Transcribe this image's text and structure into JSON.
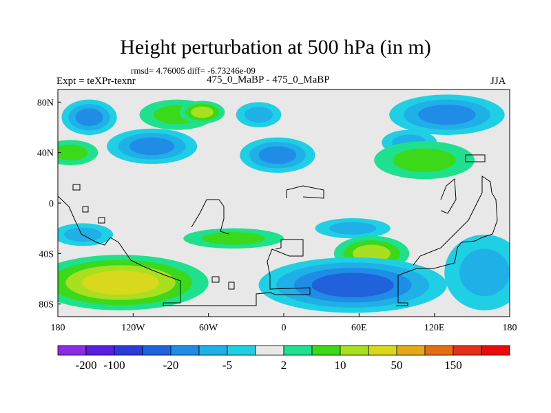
{
  "title": "Height perturbation at 500 hPa (in m)",
  "stats": "rmsd= 4.76005 diff= -6.73246e-09",
  "experiment": "Expt = teXPr-texnr",
  "comparison": "475_0_MaBP - 475_0_MaBP",
  "season": "JJA",
  "chart_data": {
    "type": "heatmap",
    "projection": "cylindrical-equidistant",
    "xlim": [
      -180,
      180
    ],
    "ylim": [
      -90,
      90
    ],
    "x_ticks": [
      {
        "value": -180,
        "label": "180"
      },
      {
        "value": -120,
        "label": "120W"
      },
      {
        "value": -60,
        "label": "60W"
      },
      {
        "value": 0,
        "label": "0"
      },
      {
        "value": 60,
        "label": "60E"
      },
      {
        "value": 120,
        "label": "120E"
      },
      {
        "value": 180,
        "label": "180"
      }
    ],
    "y_ticks": [
      {
        "value": 80,
        "label": "80N"
      },
      {
        "value": 40,
        "label": "40N"
      },
      {
        "value": 0,
        "label": "0"
      },
      {
        "value": -40,
        "label": "40S"
      },
      {
        "value": -80,
        "label": "80S"
      }
    ],
    "levels": [
      -200,
      -100,
      -50,
      -20,
      -10,
      -5,
      -2,
      2,
      5,
      10,
      20,
      50,
      100,
      150,
      200
    ],
    "colorbar_labels": [
      "-200",
      "-100",
      "-20",
      "-5",
      "2",
      "10",
      "50",
      "150"
    ],
    "colors": [
      "#8b2be2",
      "#5a1ee0",
      "#2c3bd6",
      "#1f62dc",
      "#1f8ce6",
      "#1fb0e8",
      "#1fd0e4",
      "#e8e8e8",
      "#1fe08c",
      "#3cd81a",
      "#a8e020",
      "#d8d81c",
      "#e4a818",
      "#e46e14",
      "#e43018",
      "#e80c0c"
    ],
    "field": [
      {
        "lon": -155,
        "lat": 68,
        "rx": 22,
        "ry": 14,
        "level": -10
      },
      {
        "lon": -85,
        "lat": 70,
        "rx": 30,
        "ry": 12,
        "level": 5
      },
      {
        "lon": -65,
        "lat": 72,
        "rx": 18,
        "ry": 9,
        "level": 10
      },
      {
        "lon": -20,
        "lat": 70,
        "rx": 18,
        "ry": 10,
        "level": -5
      },
      {
        "lon": 130,
        "lat": 70,
        "rx": 46,
        "ry": 16,
        "level": -10
      },
      {
        "lon": 100,
        "lat": 48,
        "rx": 22,
        "ry": 10,
        "level": -5
      },
      {
        "lon": -170,
        "lat": 40,
        "rx": 22,
        "ry": 10,
        "level": 5
      },
      {
        "lon": -105,
        "lat": 45,
        "rx": 36,
        "ry": 14,
        "level": -10
      },
      {
        "lon": -5,
        "lat": 38,
        "rx": 30,
        "ry": 14,
        "level": -10
      },
      {
        "lon": 112,
        "lat": 34,
        "rx": 40,
        "ry": 15,
        "level": 5
      },
      {
        "lon": 55,
        "lat": -20,
        "rx": 30,
        "ry": 8,
        "level": -5
      },
      {
        "lon": -40,
        "lat": -28,
        "rx": 40,
        "ry": 8,
        "level": 5
      },
      {
        "lon": -160,
        "lat": -25,
        "rx": 24,
        "ry": 9,
        "level": -5
      },
      {
        "lon": -130,
        "lat": -63,
        "rx": 70,
        "ry": 22,
        "level": 20
      },
      {
        "lon": 70,
        "lat": -40,
        "rx": 30,
        "ry": 14,
        "level": 10
      },
      {
        "lon": 55,
        "lat": -65,
        "rx": 75,
        "ry": 22,
        "level": -20
      },
      {
        "lon": 160,
        "lat": -55,
        "rx": 32,
        "ry": 30,
        "level": -5
      }
    ]
  },
  "colors": {
    "background": "#ffffff",
    "ocean_neutral": "#e8e8e8",
    "coastline": "#000000"
  }
}
